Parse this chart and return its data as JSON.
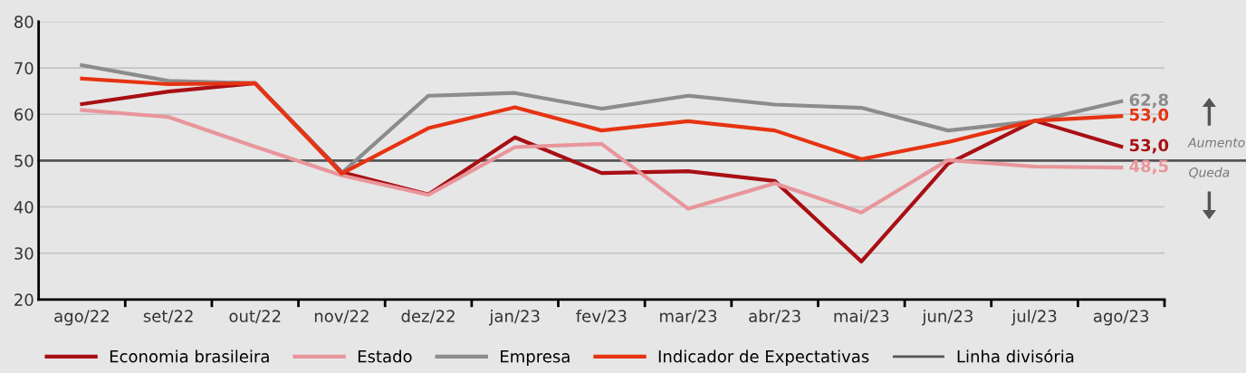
{
  "chart_data": {
    "type": "line",
    "categories": [
      "ago/22",
      "set/22",
      "out/22",
      "nov/22",
      "dez/22",
      "jan/23",
      "fev/23",
      "mar/23",
      "abr/23",
      "mai/23",
      "jun/23",
      "jul/23",
      "ago/23"
    ],
    "series": [
      {
        "name": "Economia brasileira",
        "color": "#a80f14",
        "values": [
          62.2,
          64.9,
          66.7,
          47.5,
          42.7,
          55.0,
          47.3,
          47.7,
          45.6,
          28.2,
          49.3,
          58.6,
          53.0
        ],
        "value_labels": [
          null,
          null,
          null,
          null,
          null,
          null,
          null,
          null,
          null,
          null,
          null,
          null,
          "53,0"
        ]
      },
      {
        "name": "Estado",
        "color": "#e8969b",
        "values": [
          60.9,
          59.4,
          53.0,
          46.8,
          42.6,
          52.9,
          53.6,
          39.6,
          45.1,
          38.8,
          50.1,
          48.7,
          48.5
        ],
        "value_labels": [
          null,
          null,
          null,
          null,
          null,
          null,
          null,
          null,
          null,
          null,
          null,
          null,
          "48,5"
        ]
      },
      {
        "name": "Empresa",
        "color": "#8c8c8c",
        "values": [
          70.6,
          67.2,
          66.7,
          47.3,
          64.0,
          64.6,
          61.2,
          64.0,
          62.1,
          61.4,
          56.5,
          58.5,
          62.8
        ],
        "value_labels": [
          null,
          null,
          null,
          null,
          null,
          null,
          null,
          null,
          null,
          null,
          null,
          null,
          "62,8"
        ]
      },
      {
        "name": "Indicador de Expectativas",
        "color": "#e63312",
        "values": [
          67.7,
          66.5,
          66.7,
          47.2,
          57.0,
          61.5,
          56.5,
          58.5,
          56.5,
          50.3,
          54.0,
          58.6,
          59.6
        ]
      }
    ],
    "ref_lines": [
      {
        "axis": "y",
        "value": 50,
        "label": "Linha divisória",
        "color": "#555555"
      }
    ],
    "annotations": [
      "Aumento",
      "Queda",
      {
        "text": "53,0",
        "x": "ago/23",
        "y": 59.6
      }
    ],
    "ylim": [
      20,
      80
    ],
    "yticks": [
      20,
      30,
      40,
      50,
      60,
      70,
      80
    ],
    "grid": "y",
    "legend": "bottom",
    "marker": "none",
    "line_style": "solid"
  }
}
